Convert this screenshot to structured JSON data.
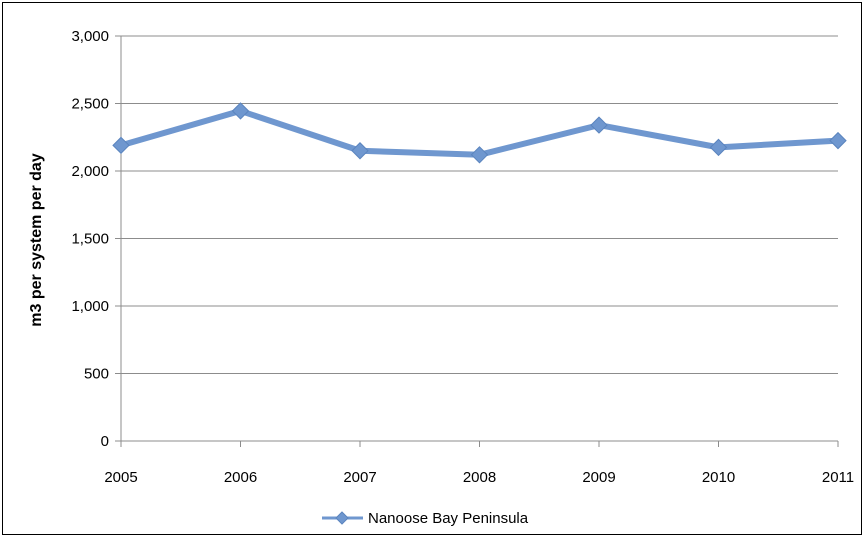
{
  "chart_data": {
    "type": "line",
    "title": "",
    "xlabel": "",
    "ylabel": "m3 per system per day",
    "categories": [
      "2005",
      "2006",
      "2007",
      "2008",
      "2009",
      "2010",
      "2011"
    ],
    "ylim": [
      0,
      3000
    ],
    "yticks": [
      0,
      500,
      1000,
      1500,
      2000,
      2500,
      3000
    ],
    "ytick_labels": [
      "0",
      "500",
      "1,000",
      "1,500",
      "2,000",
      "2,500",
      "3,000"
    ],
    "grid": true,
    "legend_position": "bottom",
    "series": [
      {
        "name": "Nanoose Bay Peninsula",
        "values": [
          2190,
          2445,
          2150,
          2120,
          2340,
          2175,
          2225
        ],
        "color": "#6f97cf",
        "marker": "diamond"
      }
    ]
  }
}
